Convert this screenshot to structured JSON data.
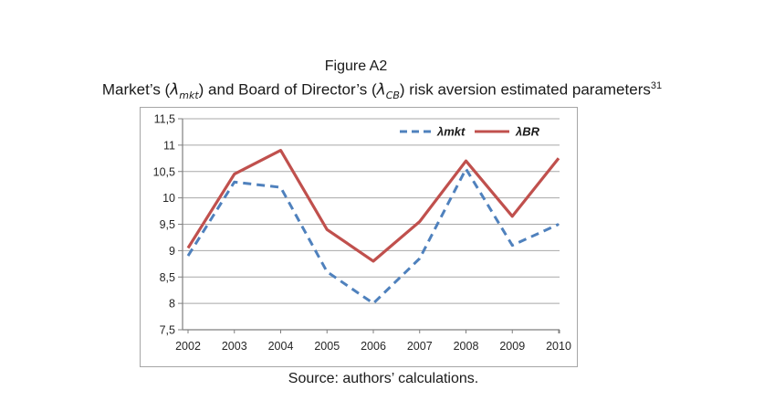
{
  "figure": {
    "label": "Figure A2"
  },
  "title": {
    "part1": "Market’s (",
    "lambda1": "λ",
    "sub1": "mkt",
    "part2": ") and Board of Director’s (",
    "lambda2": "λ",
    "sub2": "CB",
    "part3": ") risk aversion estimated parameters",
    "superscript": "31"
  },
  "source": "Source: authors’ calculations.",
  "chart_data": {
    "type": "line",
    "title": "",
    "xlabel": "",
    "ylabel": "",
    "categories": [
      "2002",
      "2003",
      "2004",
      "2005",
      "2006",
      "2007",
      "2008",
      "2009",
      "2010"
    ],
    "series": [
      {
        "name": "λmkt",
        "color": "#4f81bd",
        "style": "dashed",
        "values": [
          8.9,
          10.3,
          10.2,
          8.6,
          8.0,
          8.85,
          10.55,
          9.1,
          9.5
        ]
      },
      {
        "name": "λBR",
        "color": "#c0504d",
        "style": "solid",
        "values": [
          9.05,
          10.45,
          10.9,
          9.4,
          8.8,
          9.55,
          10.7,
          9.65,
          10.75
        ]
      }
    ],
    "ylim": [
      7.5,
      11.5
    ],
    "yticks": [
      7.5,
      8,
      8.5,
      9,
      9.5,
      10,
      10.5,
      11,
      11.5
    ],
    "ytick_labels": [
      "7,5",
      "8",
      "8,5",
      "9",
      "9,5",
      "10",
      "10,5",
      "11",
      "11,5"
    ],
    "grid": true,
    "legend_position": "top-right-inside",
    "colors": {
      "gridline": "#a8a8a8",
      "axis": "#7f7f7f",
      "tick_text": "#262626",
      "border": "#a6a6a6"
    }
  }
}
